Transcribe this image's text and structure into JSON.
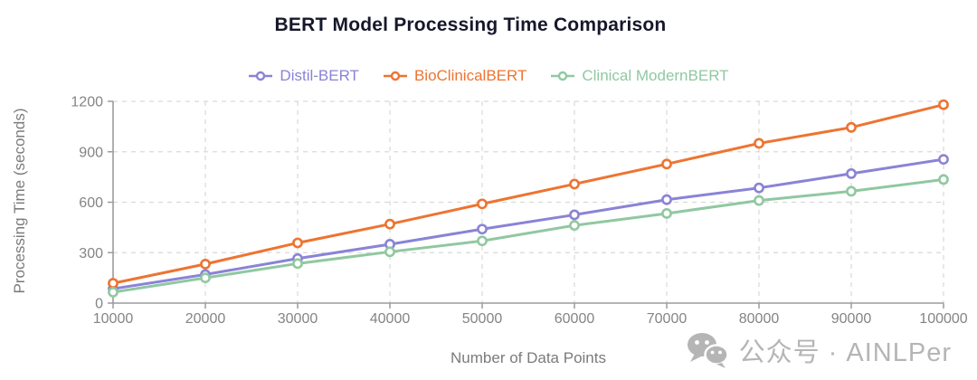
{
  "title": "BERT Model Processing Time Comparison",
  "chart_data": {
    "type": "line",
    "x": [
      10000,
      20000,
      30000,
      40000,
      50000,
      60000,
      70000,
      80000,
      90000,
      100000
    ],
    "series": [
      {
        "name": "Distil-BERT",
        "color": "#8A83D6",
        "values": [
          85,
          170,
          265,
          350,
          440,
          525,
          615,
          685,
          770,
          855
        ]
      },
      {
        "name": "BioClinicalBERT",
        "color": "#ED7431",
        "values": [
          118,
          232,
          358,
          470,
          590,
          708,
          827,
          950,
          1045,
          1180
        ]
      },
      {
        "name": "Clinical ModernBERT",
        "color": "#90C8A0",
        "values": [
          65,
          150,
          235,
          305,
          370,
          462,
          533,
          610,
          665,
          735
        ]
      }
    ],
    "xlabel": "Number of Data Points",
    "ylabel": "Processing Time (seconds)",
    "ylim": [
      0,
      1200
    ],
    "yticks": [
      0,
      300,
      600,
      900,
      1200
    ],
    "grid": true,
    "grid_style": "dashed",
    "legend_position": "top",
    "marker": "open-circle",
    "axis_color": "#9b9b9b",
    "grid_color": "#d9d9d9",
    "tick_label_color": "#848484"
  },
  "watermark": {
    "text": "公众号 · AINLPer"
  }
}
